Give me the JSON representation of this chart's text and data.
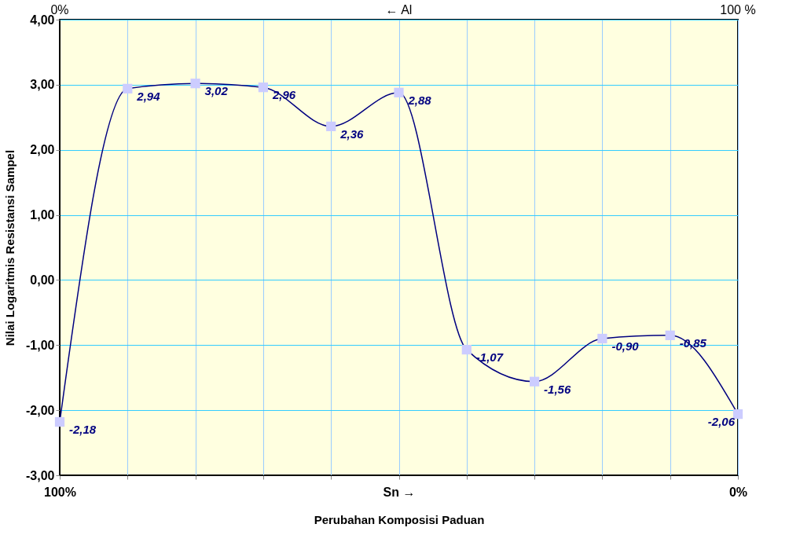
{
  "chart_data": {
    "type": "line",
    "xlabel": "Perubahan Komposisi Paduan",
    "ylabel": "Nilai Logaritmis Resistansi Sampel",
    "categories": [
      "100%",
      null,
      null,
      null,
      null,
      "Sn →",
      null,
      null,
      null,
      null,
      "0%"
    ],
    "annotations": [
      "0%",
      "← Al",
      "100 %"
    ],
    "series": [
      {
        "color": "#000080",
        "values": [
          -2.18,
          2.94,
          3.02,
          2.96,
          2.36,
          2.88,
          -1.07,
          -1.56,
          -0.9,
          -0.85,
          -2.06
        ],
        "value_labels": [
          "-2,18",
          "2,94",
          "3,02",
          "2,96",
          "2,36",
          "2,88",
          "-1,07",
          "-1,56",
          "-0,90",
          "-0,85",
          "-2,06"
        ]
      }
    ],
    "marker": "square",
    "grid": true,
    "ylim": [
      -3,
      4
    ],
    "yticks": [
      {
        "value": -3,
        "label": "-3,00"
      },
      {
        "value": -2,
        "label": "-2,00"
      },
      {
        "value": -1,
        "label": "-1,00"
      },
      {
        "value": 0,
        "label": "0,00"
      },
      {
        "value": 1,
        "label": "1,00"
      },
      {
        "value": 2,
        "label": "2,00"
      },
      {
        "value": 3,
        "label": "3,00"
      },
      {
        "value": 4,
        "label": "4,00"
      }
    ]
  }
}
